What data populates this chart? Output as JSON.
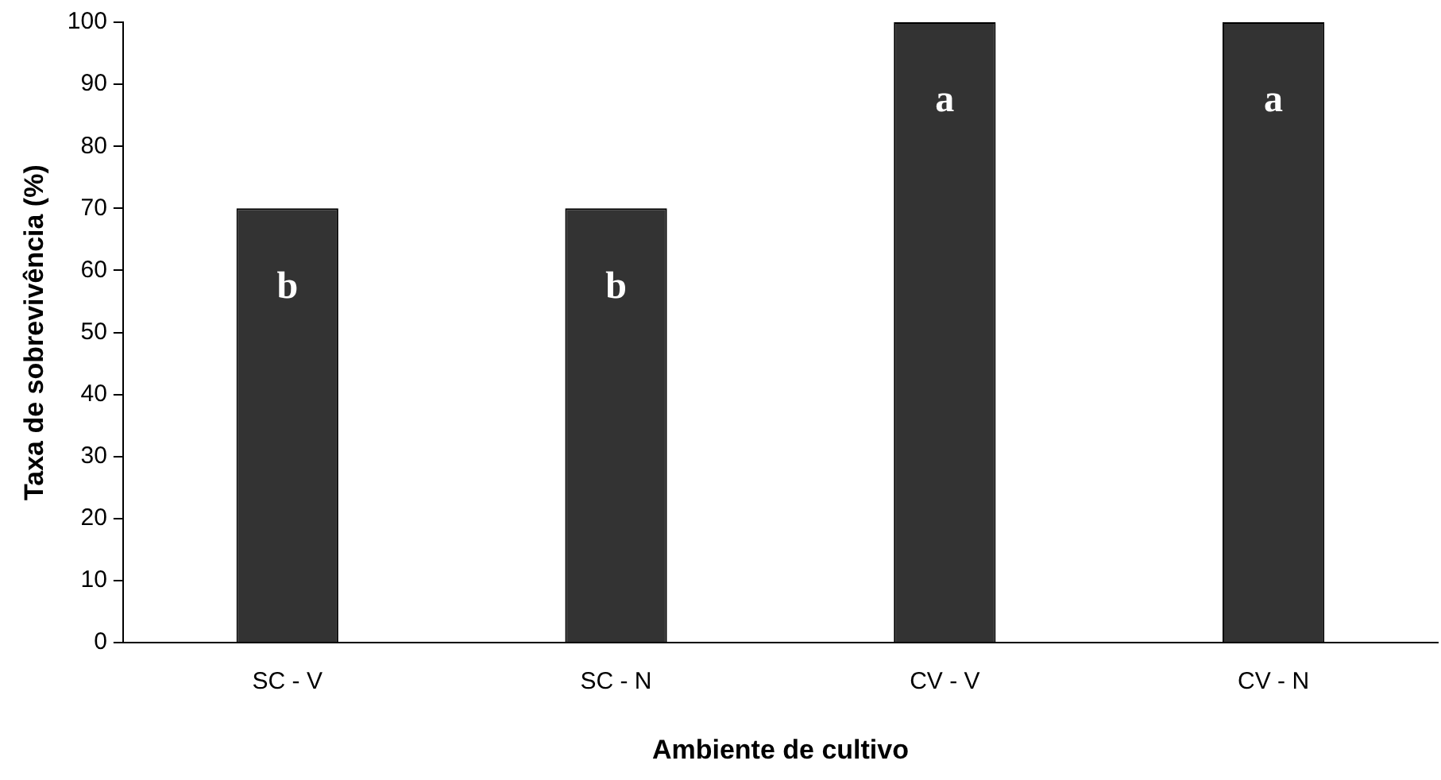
{
  "chart_data": {
    "type": "bar",
    "xlabel": "Ambiente de cultivo",
    "ylabel": "Taxa de sobrevivência (%)",
    "categories": [
      "SC - V",
      "SC - N",
      "CV - V",
      "CV - N"
    ],
    "values": [
      70,
      70,
      100,
      100
    ],
    "color": "#333333",
    "ylim": [
      0,
      100
    ],
    "yticks": [
      0,
      10,
      20,
      30,
      40,
      50,
      60,
      70,
      80,
      90,
      100
    ],
    "grid": false,
    "legend": false,
    "annotations": [
      "b",
      "b",
      "a",
      "a"
    ]
  }
}
